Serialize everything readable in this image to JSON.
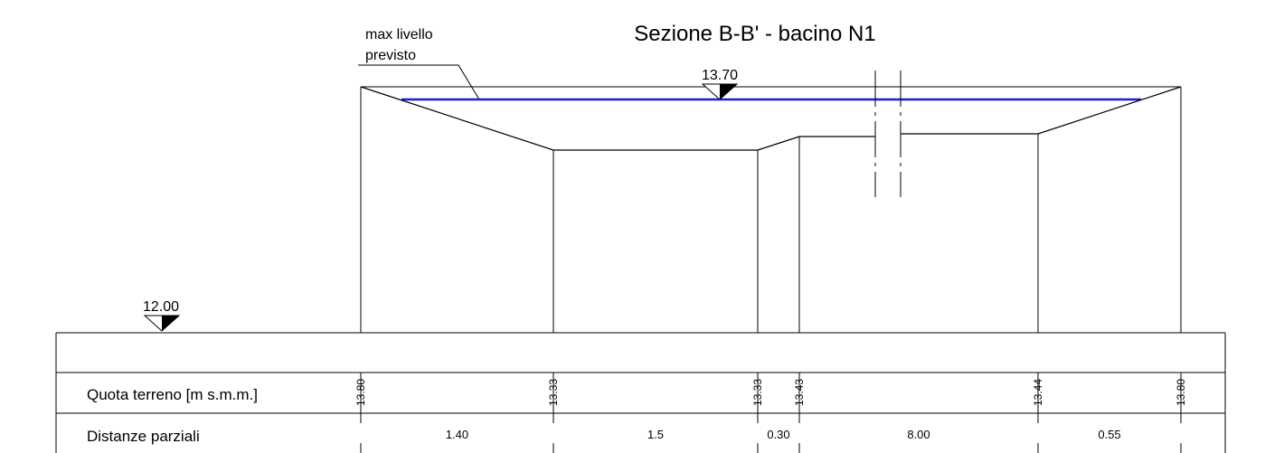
{
  "title": "Sezione B-B' - bacino N1",
  "water_note": {
    "line1": "max livello",
    "line2": "previsto"
  },
  "levels": {
    "water": "13.70",
    "reference": "12.00"
  },
  "table": {
    "row1_label": "Quota terreno  [m  s.m.m.]",
    "row2_label": "Distanze parziali",
    "quote": [
      "13.80",
      "13.33",
      "13.33",
      "13.43",
      "13.44",
      "13.80"
    ],
    "distances": [
      "1.40",
      "1.5",
      "0.30",
      "8.00",
      "0.55"
    ]
  },
  "colors": {
    "water_line": "#1f1fd0",
    "lines": "#000000"
  }
}
